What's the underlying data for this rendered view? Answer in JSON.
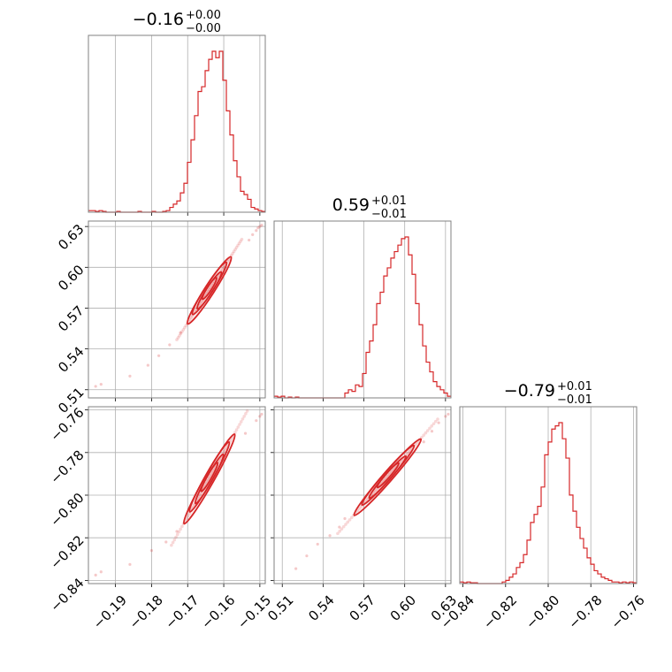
{
  "chart_data": {
    "type": "corner",
    "color": "#d62728",
    "grid": true,
    "parameters": [
      {
        "median": "−0.16",
        "plus": "+0.00",
        "minus": "−0.00",
        "range": [
          -0.1975,
          -0.1485
        ],
        "ticks": [
          -0.19,
          -0.18,
          -0.17,
          -0.16,
          -0.15
        ],
        "tick_labels": [
          "−0.19",
          "−0.18",
          "−0.17",
          "−0.16",
          "−0.15"
        ]
      },
      {
        "median": "0.59",
        "plus": "+0.01",
        "minus": "−0.01",
        "range": [
          0.504,
          0.634
        ],
        "ticks": [
          0.51,
          0.54,
          0.57,
          0.6,
          0.63
        ],
        "tick_labels": [
          "0.51",
          "0.54",
          "0.57",
          "0.60",
          "0.63"
        ]
      },
      {
        "median": "−0.79",
        "plus": "+0.01",
        "minus": "−0.01",
        "range": [
          -0.8415,
          -0.7585
        ],
        "ticks": [
          -0.84,
          -0.82,
          -0.8,
          -0.78,
          -0.76
        ],
        "tick_labels": [
          "−0.84",
          "−0.82",
          "−0.80",
          "−0.78",
          "−0.76"
        ]
      }
    ],
    "histograms": [
      {
        "edges_range": [
          -0.1975,
          -0.1485
        ],
        "bins": 50,
        "counts": [
          0.01,
          0.01,
          0.005,
          0.01,
          0.005,
          0,
          0,
          0,
          0.005,
          0,
          0,
          0,
          0,
          0,
          0.005,
          0,
          0,
          0,
          0.005,
          0,
          0,
          0.005,
          0.01,
          0.03,
          0.05,
          0.07,
          0.12,
          0.18,
          0.31,
          0.45,
          0.6,
          0.75,
          0.78,
          0.88,
          0.95,
          1.0,
          0.96,
          1.0,
          0.82,
          0.63,
          0.48,
          0.32,
          0.22,
          0.13,
          0.11,
          0.08,
          0.03,
          0.02,
          0.01,
          0.005
        ]
      },
      {
        "edges_range": [
          0.504,
          0.634
        ],
        "bins": 50,
        "counts": [
          0.01,
          0.005,
          0.01,
          0.0,
          0.005,
          0.0,
          0.005,
          0.0,
          0.0,
          0.0,
          0.0,
          0.0,
          0.0,
          0.0,
          0.0,
          0.0,
          0.0,
          0.0,
          0.0,
          0.0,
          0.03,
          0.05,
          0.04,
          0.08,
          0.07,
          0.15,
          0.28,
          0.35,
          0.45,
          0.58,
          0.65,
          0.75,
          0.8,
          0.86,
          0.9,
          0.94,
          0.98,
          0.99,
          0.88,
          0.76,
          0.58,
          0.45,
          0.32,
          0.22,
          0.16,
          0.1,
          0.07,
          0.05,
          0.03,
          0.01
        ]
      },
      {
        "edges_range": [
          -0.8415,
          -0.7585
        ],
        "bins": 50,
        "counts": [
          0.01,
          0.005,
          0.01,
          0.005,
          0.005,
          0.0,
          0.0,
          0.0,
          0.0,
          0.0,
          0.0,
          0.0,
          0.01,
          0.02,
          0.04,
          0.06,
          0.1,
          0.13,
          0.18,
          0.27,
          0.38,
          0.43,
          0.48,
          0.6,
          0.8,
          0.88,
          0.96,
          0.98,
          1.0,
          0.9,
          0.78,
          0.55,
          0.45,
          0.35,
          0.28,
          0.22,
          0.16,
          0.12,
          0.08,
          0.06,
          0.04,
          0.03,
          0.02,
          0.01,
          0.01,
          0.005,
          0.01,
          0.005,
          0.01,
          0.005
        ]
      }
    ],
    "pairs": [
      {
        "x_param": 0,
        "y_param": 1,
        "density_line": {
          "x0": -0.1655,
          "y0": 0.5775,
          "slope": 4.1,
          "halfwidth": 0.0015
        },
        "contour_extent_x": [
          -0.17,
          -0.158
        ],
        "faint_points": [
          [
            -0.1955,
            0.5125
          ],
          [
            -0.194,
            0.514
          ],
          [
            -0.186,
            0.52
          ],
          [
            -0.181,
            0.528
          ],
          [
            -0.178,
            0.535
          ],
          [
            -0.175,
            0.543
          ],
          [
            -0.172,
            0.552
          ],
          [
            -0.153,
            0.62
          ],
          [
            -0.151,
            0.627
          ],
          [
            -0.15,
            0.63
          ],
          [
            -0.1495,
            0.631
          ],
          [
            -0.1505,
            0.629
          ],
          [
            -0.152,
            0.624
          ]
        ]
      },
      {
        "x_param": 0,
        "y_param": 2,
        "density_line": {
          "x0": -0.164,
          "y0": -0.792,
          "slope": 3.0,
          "halfwidth": 0.0015
        },
        "contour_extent_x": [
          -0.171,
          -0.157
        ],
        "faint_points": [
          [
            -0.1955,
            -0.8375
          ],
          [
            -0.194,
            -0.836
          ],
          [
            -0.186,
            -0.8325
          ],
          [
            -0.18,
            -0.826
          ],
          [
            -0.176,
            -0.822
          ],
          [
            -0.173,
            -0.817
          ],
          [
            -0.154,
            -0.771
          ],
          [
            -0.151,
            -0.765
          ],
          [
            -0.15,
            -0.763
          ],
          [
            -0.1495,
            -0.762
          ]
        ]
      },
      {
        "x_param": 1,
        "y_param": 2,
        "density_line": {
          "x0": 0.585,
          "y0": -0.793,
          "slope": 0.73,
          "halfwidth": 0.0013
        },
        "contour_extent_x": [
          0.563,
          0.612
        ],
        "faint_points": [
          [
            0.52,
            -0.8345
          ],
          [
            0.528,
            -0.8285
          ],
          [
            0.536,
            -0.823
          ],
          [
            0.545,
            -0.819
          ],
          [
            0.552,
            -0.815
          ],
          [
            0.556,
            -0.811
          ],
          [
            0.614,
            -0.775
          ],
          [
            0.62,
            -0.77
          ],
          [
            0.625,
            -0.766
          ],
          [
            0.63,
            -0.763
          ],
          [
            0.632,
            -0.762
          ]
        ]
      }
    ]
  }
}
